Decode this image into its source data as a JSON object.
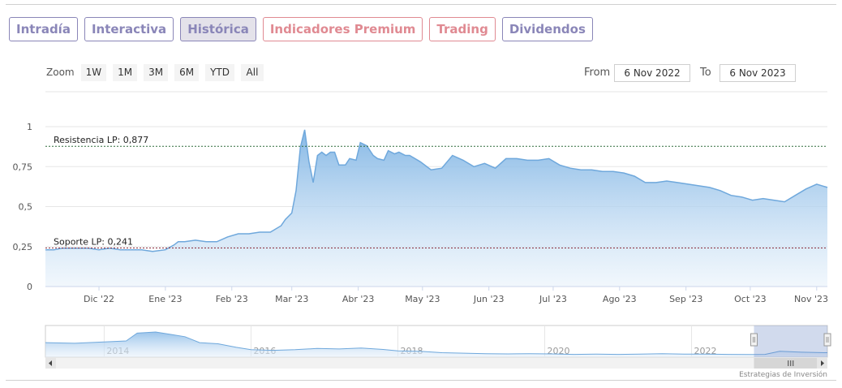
{
  "tabs": [
    {
      "label": "Intradía",
      "active": false,
      "premium": false
    },
    {
      "label": "Interactiva",
      "active": false,
      "premium": false
    },
    {
      "label": "Histórica",
      "active": true,
      "premium": false
    },
    {
      "label": "Indicadores Premium",
      "active": false,
      "premium": true
    },
    {
      "label": "Trading",
      "active": false,
      "premium": true
    },
    {
      "label": "Dividendos",
      "active": false,
      "premium": false
    }
  ],
  "zoom": {
    "label": "Zoom",
    "buttons": [
      "1W",
      "1M",
      "3M",
      "6M",
      "YTD",
      "All"
    ]
  },
  "range": {
    "from_label": "From",
    "from_value": "6 Nov 2022",
    "to_label": "To",
    "to_value": "6 Nov 2023"
  },
  "colors": {
    "tab": "#8a86b8",
    "tab_premium": "#e08a92",
    "line": "#6fa8dc",
    "fill_top": "#8fbde8",
    "resistance": "#2e6b3a",
    "support": "#8a2a3a"
  },
  "credit": "Estrategias de Inversión",
  "chart_data": {
    "type": "area",
    "ylim": [
      0,
      1
    ],
    "y_ticks": [
      "0",
      "0,25",
      "0,5",
      "0,75",
      "1"
    ],
    "y_tick_values": [
      0,
      0.25,
      0.5,
      0.75,
      1
    ],
    "x_ticks": [
      "Dic '22",
      "Ene '23",
      "Feb '23",
      "Mar '23",
      "Abr '23",
      "May '23",
      "Jun '23",
      "Jul '23",
      "Ago '23",
      "Sep '23",
      "Oct '23",
      "Nov '23"
    ],
    "x_tick_days": [
      25,
      56,
      87,
      115,
      146,
      176,
      207,
      237,
      268,
      299,
      329,
      360
    ],
    "x_range_days": [
      0,
      365
    ],
    "grid": true,
    "series": [
      {
        "x_days": [
          0,
          4,
          8,
          12,
          16,
          20,
          25,
          30,
          35,
          40,
          45,
          50,
          56,
          60,
          62,
          65,
          70,
          75,
          80,
          85,
          90,
          95,
          100,
          105,
          110,
          112,
          115,
          117,
          119,
          121,
          123,
          125,
          127,
          129,
          131,
          133,
          135,
          137,
          140,
          142,
          145,
          147,
          150,
          153,
          155,
          158,
          160,
          163,
          165,
          168,
          170,
          175,
          180,
          185,
          190,
          195,
          200,
          205,
          210,
          215,
          220,
          225,
          230,
          235,
          240,
          245,
          250,
          255,
          260,
          265,
          270,
          275,
          280,
          285,
          290,
          295,
          300,
          305,
          310,
          315,
          320,
          325,
          330,
          335,
          340,
          345,
          350,
          355,
          360,
          365
        ],
        "values": [
          0.23,
          0.23,
          0.24,
          0.24,
          0.24,
          0.24,
          0.23,
          0.24,
          0.23,
          0.23,
          0.23,
          0.22,
          0.23,
          0.26,
          0.28,
          0.28,
          0.29,
          0.28,
          0.28,
          0.31,
          0.33,
          0.33,
          0.34,
          0.34,
          0.38,
          0.42,
          0.46,
          0.6,
          0.87,
          0.98,
          0.78,
          0.65,
          0.82,
          0.84,
          0.82,
          0.84,
          0.84,
          0.76,
          0.76,
          0.8,
          0.79,
          0.9,
          0.88,
          0.82,
          0.8,
          0.79,
          0.85,
          0.83,
          0.84,
          0.82,
          0.82,
          0.78,
          0.73,
          0.74,
          0.82,
          0.79,
          0.75,
          0.77,
          0.74,
          0.8,
          0.8,
          0.79,
          0.79,
          0.8,
          0.76,
          0.74,
          0.73,
          0.73,
          0.72,
          0.72,
          0.71,
          0.69,
          0.65,
          0.65,
          0.66,
          0.65,
          0.64,
          0.63,
          0.62,
          0.6,
          0.57,
          0.56,
          0.54,
          0.55,
          0.54,
          0.53,
          0.57,
          0.61,
          0.64,
          0.62
        ]
      }
    ],
    "annotations": [
      {
        "label": "Resistencia LP: 0,877",
        "value": 0.877,
        "kind": "resistance"
      },
      {
        "label": "Soporte LP: 0,241",
        "value": 0.241,
        "kind": "support"
      }
    ],
    "navigator": {
      "x_labels": [
        "2014",
        "2016",
        "2018",
        "2020",
        "2022"
      ],
      "x_label_years": [
        2014,
        2016,
        2018,
        2020,
        2022
      ],
      "x_range_years": [
        2013.2,
        2023.85
      ],
      "x_years": [
        2013.2,
        2013.6,
        2014.0,
        2014.3,
        2014.45,
        2014.7,
        2014.9,
        2015.1,
        2015.3,
        2015.55,
        2015.8,
        2016.0,
        2016.3,
        2016.6,
        2016.9,
        2017.2,
        2017.5,
        2017.8,
        2018.0,
        2018.3,
        2018.6,
        2018.9,
        2019.2,
        2019.5,
        2019.8,
        2020.1,
        2020.4,
        2020.7,
        2021.0,
        2021.3,
        2021.6,
        2021.9,
        2022.2,
        2022.5,
        2022.8,
        2023.0,
        2023.2,
        2023.5,
        2023.85
      ],
      "values": [
        0.55,
        0.52,
        0.58,
        0.62,
        0.95,
        1.0,
        0.9,
        0.8,
        0.55,
        0.5,
        0.35,
        0.25,
        0.22,
        0.25,
        0.3,
        0.28,
        0.32,
        0.26,
        0.2,
        0.18,
        0.12,
        0.1,
        0.08,
        0.07,
        0.08,
        0.07,
        0.05,
        0.06,
        0.05,
        0.06,
        0.08,
        0.06,
        0.06,
        0.05,
        0.04,
        0.05,
        0.18,
        0.14,
        0.12
      ],
      "selected_years": [
        2022.85,
        2023.85
      ]
    }
  }
}
